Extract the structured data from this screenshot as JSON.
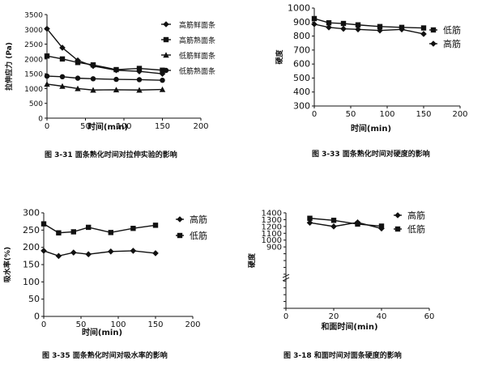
{
  "chart_data": [
    {
      "type": "line",
      "ylabel": "拉伸应力 (Pa)",
      "xlabel": "时间(min)",
      "caption": "图 3-31 面条熟化时间对拉伸实验的影响",
      "xlim": [
        0,
        200
      ],
      "ylim": [
        0,
        3500
      ],
      "xticks": [
        0,
        50,
        100,
        150,
        200
      ],
      "yticks": [
        0,
        500,
        1000,
        1500,
        2000,
        2500,
        3000,
        3500
      ],
      "legend_position": "right",
      "x": [
        0,
        20,
        40,
        60,
        90,
        120,
        150
      ],
      "series": [
        {
          "name": "高筋鲜面条",
          "marker": "diamond",
          "values": [
            3020,
            2380,
            1950,
            1760,
            1620,
            1580,
            1500
          ]
        },
        {
          "name": "高筋熟面条",
          "marker": "square",
          "values": [
            2100,
            2000,
            1880,
            1800,
            1640,
            1680,
            1620
          ]
        },
        {
          "name": "低筋鲜面条",
          "marker": "triangle",
          "values": [
            1150,
            1080,
            1000,
            950,
            960,
            950,
            970
          ]
        },
        {
          "name": "低筋熟面条",
          "marker": "circle",
          "values": [
            1420,
            1400,
            1350,
            1330,
            1310,
            1300,
            1280
          ]
        }
      ]
    },
    {
      "type": "line",
      "ylabel": "硬度",
      "xlabel": "时间(min)",
      "caption": "图 3-33 面条熟化时间对硬度的影响",
      "xlim": [
        0,
        200
      ],
      "ylim": [
        300,
        1000
      ],
      "xticks": [
        0,
        50,
        100,
        150,
        200
      ],
      "yticks": [
        300,
        400,
        500,
        600,
        700,
        800,
        900,
        1000
      ],
      "legend_position": "right",
      "x": [
        0,
        20,
        40,
        60,
        90,
        120,
        150
      ],
      "series": [
        {
          "name": "低筋",
          "marker": "square",
          "values": [
            925,
            895,
            890,
            880,
            868,
            862,
            858
          ]
        },
        {
          "name": "高筋",
          "marker": "diamond",
          "values": [
            885,
            862,
            852,
            848,
            840,
            848,
            815
          ]
        }
      ]
    },
    {
      "type": "line",
      "ylabel": "吸水率(%)",
      "xlabel": "时间(min)",
      "caption": "图 3-35 面条熟化时间对吸水率的影响",
      "xlim": [
        0,
        200
      ],
      "ylim": [
        0,
        300
      ],
      "xticks": [
        0,
        50,
        100,
        150,
        200
      ],
      "yticks": [
        0,
        50,
        100,
        150,
        200,
        250,
        300
      ],
      "legend_position": "right",
      "x": [
        0,
        20,
        40,
        60,
        90,
        120,
        150
      ],
      "series": [
        {
          "name": "高筋",
          "marker": "diamond",
          "values": [
            190,
            175,
            185,
            180,
            188,
            190,
            183
          ]
        },
        {
          "name": "低筋",
          "marker": "square",
          "values": [
            268,
            242,
            245,
            258,
            243,
            255,
            264
          ]
        }
      ]
    },
    {
      "type": "line",
      "ylabel": "硬度",
      "xlabel": "和面时间(min)",
      "caption": "图 3-18 和面时间对面条硬度的影响",
      "xlim": [
        0,
        60
      ],
      "ylim": [
        0,
        1400
      ],
      "xticks": [
        0,
        20,
        40,
        60
      ],
      "yticks": [
        0,
        100,
        200,
        300,
        400,
        500,
        600,
        700,
        800,
        900,
        1000,
        1100,
        1200,
        1300,
        1400
      ],
      "ytick_labels_shown": [
        900,
        1000,
        1100,
        1200,
        1300,
        1400
      ],
      "y_axis_break": true,
      "legend_position": "right",
      "x": [
        10,
        20,
        30,
        40
      ],
      "series": [
        {
          "name": "高筋",
          "marker": "diamond",
          "values": [
            1255,
            1200,
            1260,
            1170
          ]
        },
        {
          "name": "低筋",
          "marker": "square",
          "values": [
            1320,
            1290,
            1235,
            1205
          ]
        }
      ]
    }
  ]
}
